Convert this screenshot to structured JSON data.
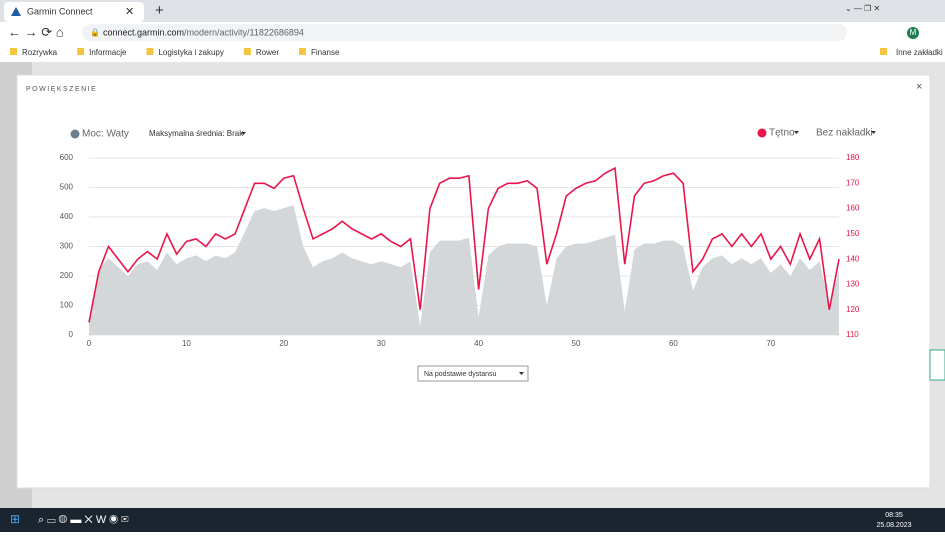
{
  "browser": {
    "tab_title": "Garmin Connect",
    "url_domain": "connect.garmin.com",
    "url_path": "/modern/activity/11822686894",
    "avatar": "M",
    "bookmarks": [
      "Rozrywka",
      "Informacje",
      "Logistyka i zakupy",
      "Rower",
      "Finanse"
    ],
    "other_bookmarks": "Inne zakładki"
  },
  "modal": {
    "title": "POWIĘKSZENIE",
    "close": "×",
    "dropdown": "Na podstawie dystansu"
  },
  "legend": {
    "left_series": "Moc: Waty",
    "average": "Maksymalna średnia: Brak",
    "overlay": "Bez nakładki"
  },
  "taskbar": {
    "time": "08:35",
    "date": "25.08.2023"
  },
  "chart_data": {
    "type": "line",
    "x": [
      0,
      1,
      2,
      3,
      4,
      5,
      6,
      7,
      8,
      9,
      10,
      11,
      12,
      13,
      14,
      15,
      16,
      17,
      18,
      19,
      20,
      21,
      22,
      23,
      24,
      25,
      26,
      27,
      28,
      29,
      30,
      31,
      32,
      33,
      34,
      35,
      36,
      37,
      38,
      39,
      40,
      41,
      42,
      43,
      44,
      45,
      46,
      47,
      48,
      49,
      50,
      51,
      52,
      53,
      54,
      55,
      56,
      57,
      58,
      59,
      60,
      61,
      62,
      63,
      64,
      65,
      66,
      67,
      68,
      69,
      70,
      71,
      72,
      73,
      74,
      75,
      76,
      77
    ],
    "series": [
      {
        "name": "Moc: Waty",
        "type": "area",
        "color": "#d3d7da",
        "values": [
          50,
          220,
          260,
          230,
          200,
          240,
          250,
          220,
          280,
          240,
          260,
          270,
          250,
          270,
          260,
          280,
          350,
          420,
          430,
          420,
          430,
          440,
          300,
          230,
          250,
          260,
          280,
          260,
          250,
          240,
          250,
          240,
          230,
          250,
          30,
          280,
          320,
          320,
          320,
          330,
          60,
          270,
          300,
          310,
          310,
          310,
          300,
          100,
          260,
          300,
          310,
          310,
          320,
          330,
          340,
          80,
          290,
          310,
          310,
          320,
          320,
          300,
          150,
          230,
          260,
          270,
          240,
          260,
          240,
          260,
          210,
          240,
          200,
          260,
          220,
          250,
          100,
          220
        ]
      },
      {
        "name": "Tętno",
        "type": "line",
        "axis": "y2",
        "color": "#e8164a",
        "values": [
          115,
          135,
          145,
          140,
          135,
          140,
          143,
          140,
          150,
          142,
          147,
          148,
          145,
          150,
          148,
          150,
          160,
          170,
          170,
          168,
          172,
          173,
          160,
          148,
          150,
          152,
          155,
          152,
          150,
          148,
          150,
          147,
          145,
          148,
          120,
          160,
          170,
          172,
          172,
          173,
          128,
          160,
          168,
          170,
          170,
          171,
          168,
          138,
          150,
          165,
          168,
          170,
          171,
          174,
          176,
          138,
          165,
          170,
          171,
          173,
          174,
          170,
          135,
          140,
          148,
          150,
          145,
          150,
          145,
          150,
          140,
          145,
          138,
          150,
          140,
          148,
          120,
          140
        ]
      }
    ],
    "xlim": [
      0,
      77
    ],
    "xticks": [
      0,
      10,
      20,
      30,
      40,
      50,
      60,
      70
    ],
    "ylim": [
      0,
      600
    ],
    "yticks": [
      0,
      100,
      200,
      300,
      400,
      500,
      600
    ],
    "y2lim": [
      110,
      180
    ],
    "y2ticks": [
      110,
      120,
      130,
      140,
      150,
      160,
      170,
      180
    ],
    "grid": true
  }
}
